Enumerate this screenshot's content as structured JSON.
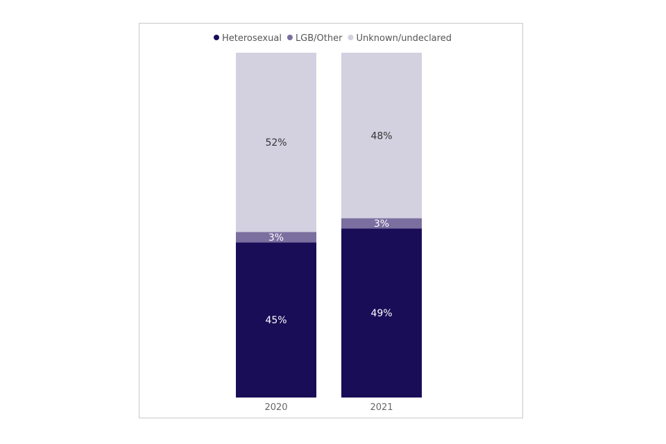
{
  "chart_data": {
    "type": "bar",
    "stacked": true,
    "orientation": "vertical",
    "categories": [
      "2020",
      "2021"
    ],
    "series": [
      {
        "name": "Heterosexual",
        "values": [
          45,
          49
        ],
        "labels": [
          "45%",
          "49%"
        ],
        "color": "#1a0d57",
        "label_color": "#ffffff"
      },
      {
        "name": "LGB/Other",
        "values": [
          3,
          3
        ],
        "labels": [
          "3%",
          "3%"
        ],
        "color": "#7b6fa0",
        "label_color": "#ffffff"
      },
      {
        "name": "Unknown/undeclared",
        "values": [
          52,
          48
        ],
        "labels": [
          "52%",
          "48%"
        ],
        "color": "#d3d1e0",
        "label_color": "#333333"
      }
    ],
    "ylim": [
      0,
      100
    ],
    "grid": false,
    "legend_position": "top"
  }
}
